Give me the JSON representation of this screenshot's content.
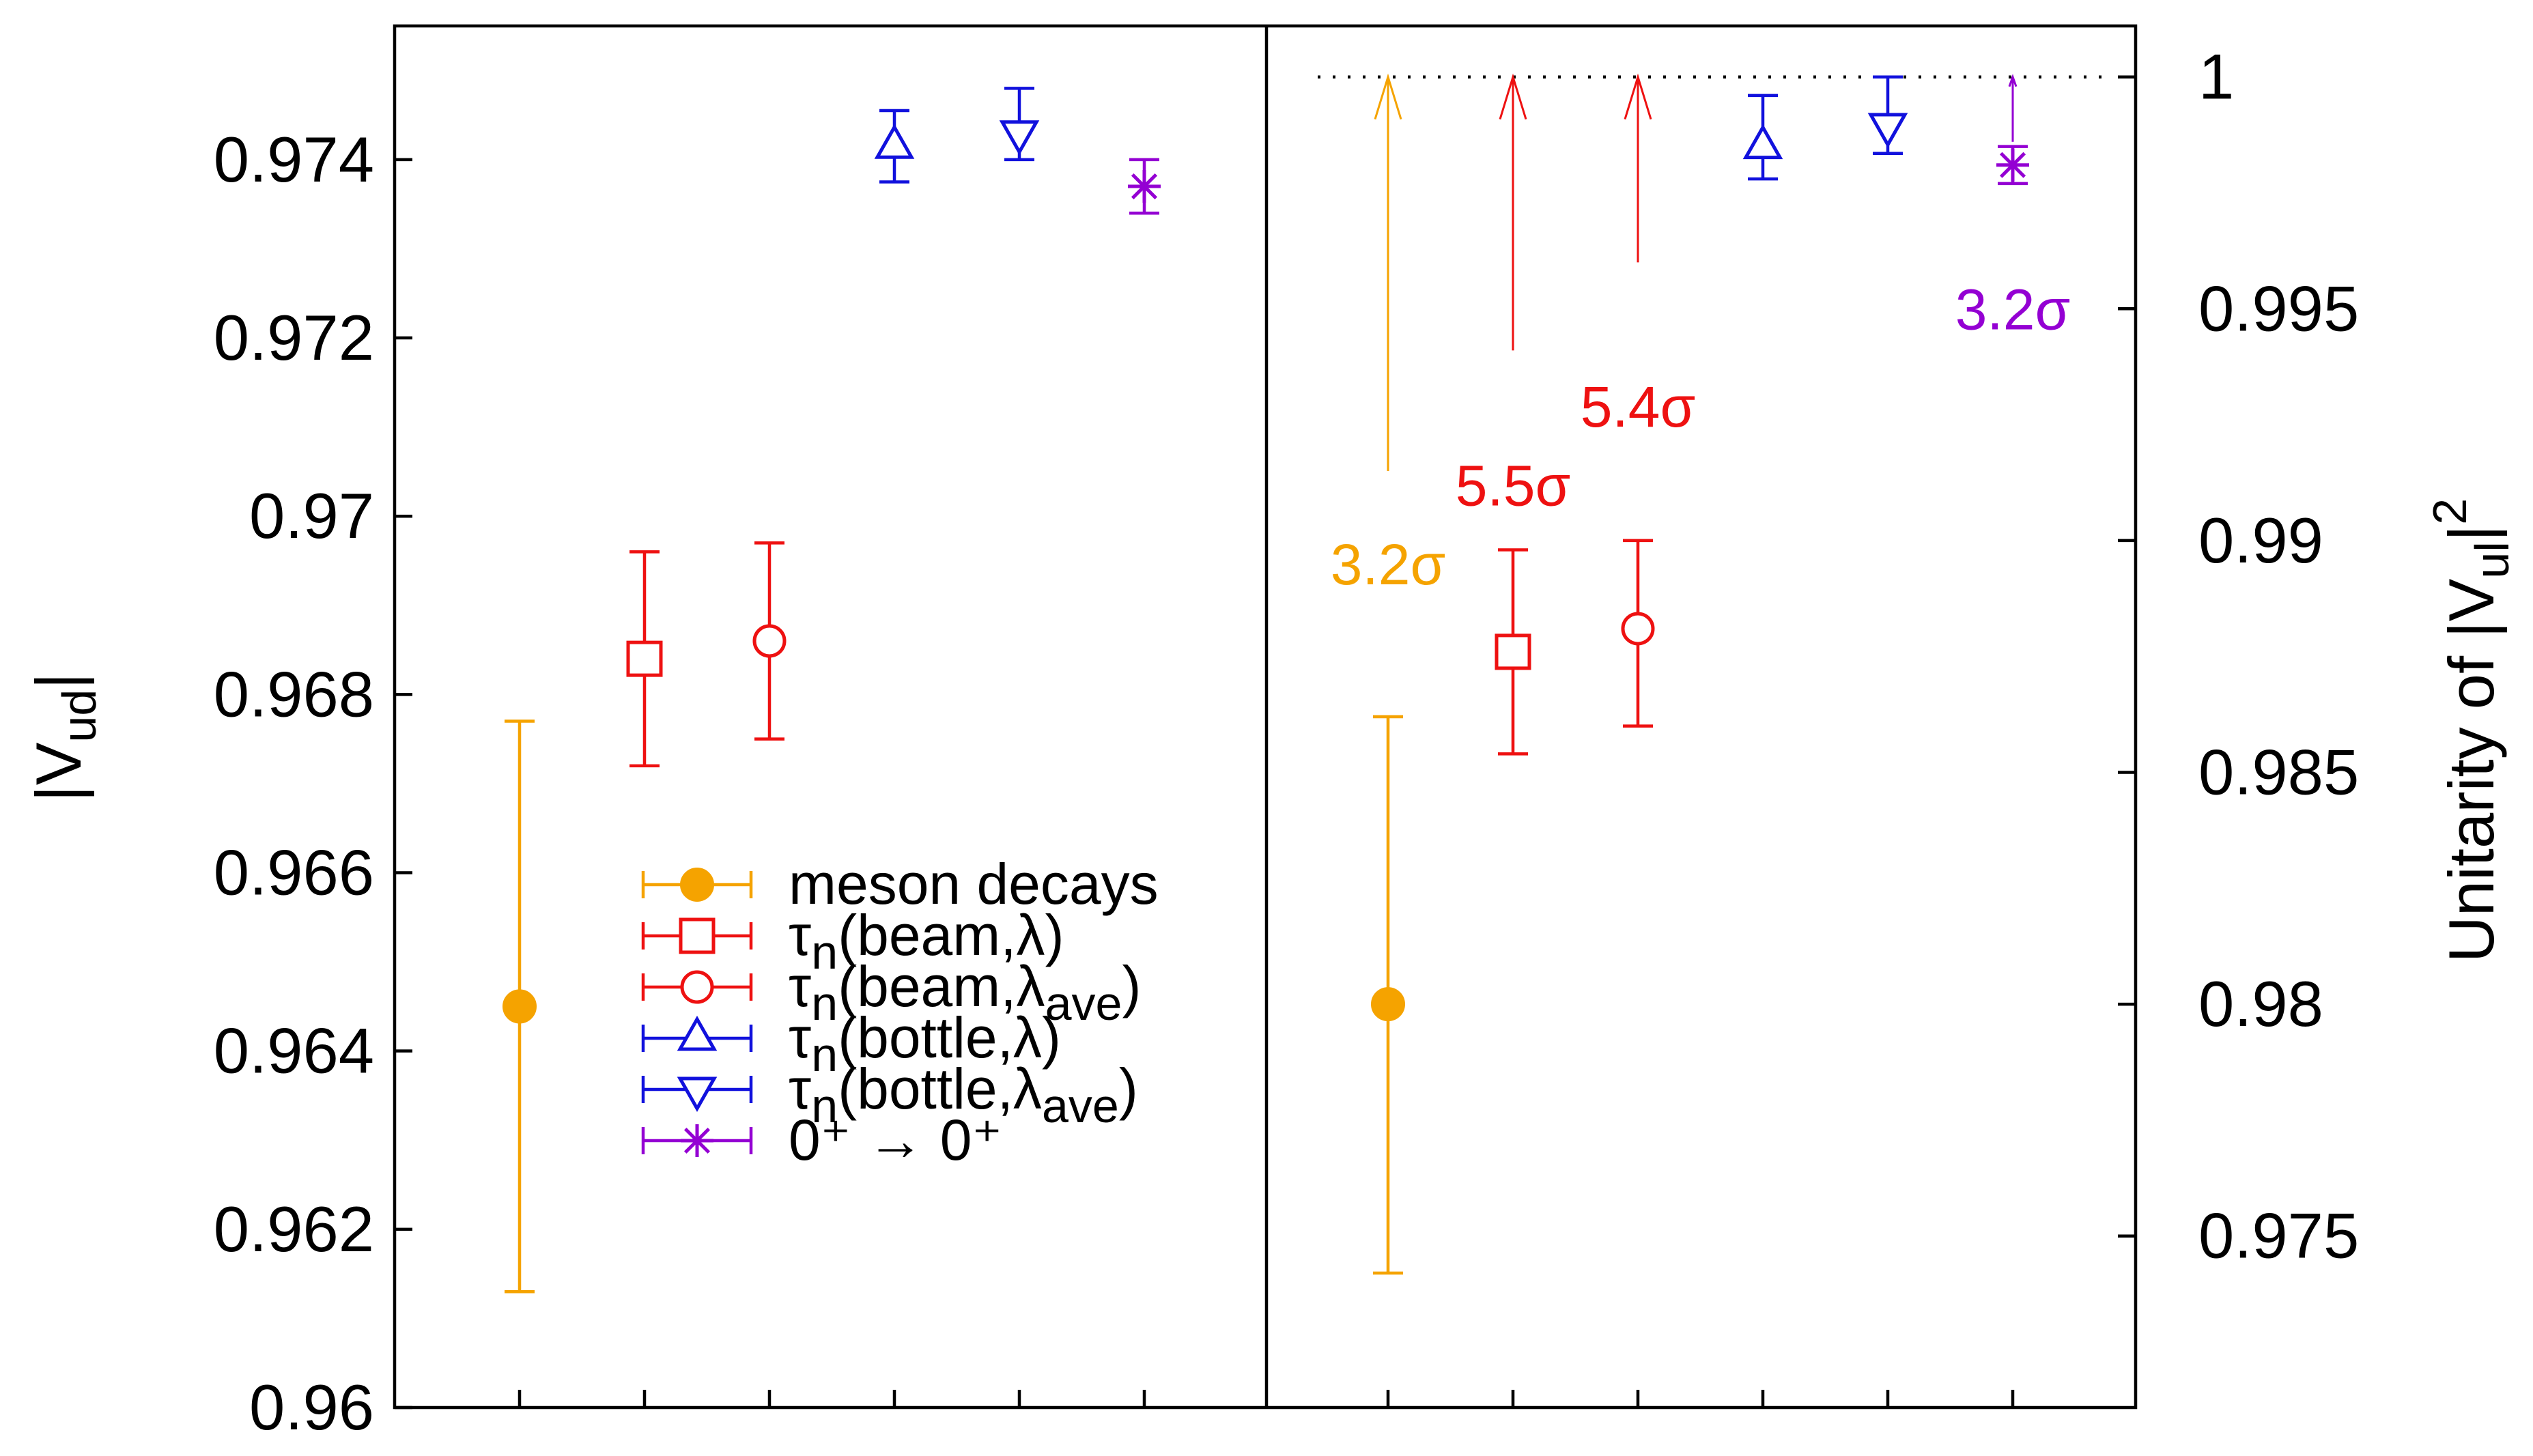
{
  "chart_data": {
    "type": "scatter",
    "colors": {
      "meson": "#f5a300",
      "beam": "#ee1111",
      "bottle": "#1111dd",
      "nuclear": "#9400d3",
      "frame": "#000000"
    },
    "legend": {
      "placement": "bottom-center of left panel",
      "entries": [
        {
          "key": "meson",
          "marker": "filled-circle",
          "color_key": "meson",
          "text": "meson decays",
          "base": "",
          "sub": "",
          "arg": "",
          "argsub": "",
          "close": ""
        },
        {
          "key": "beam_lambda",
          "marker": "open-square",
          "color_key": "beam",
          "text": "",
          "base": "τ",
          "sub": "n",
          "arg": "(beam,λ",
          "argsub": "",
          "close": ")"
        },
        {
          "key": "beam_lambda_ave",
          "marker": "open-circle",
          "color_key": "beam",
          "text": "",
          "base": "τ",
          "sub": "n",
          "arg": "(beam,λ",
          "argsub": "ave",
          "close": ")"
        },
        {
          "key": "bottle_lambda",
          "marker": "open-triangle-up",
          "color_key": "bottle",
          "text": "",
          "base": "τ",
          "sub": "n",
          "arg": "(bottle,λ",
          "argsub": "",
          "close": ")"
        },
        {
          "key": "bottle_lambda_ave",
          "marker": "open-triangle-down",
          "color_key": "bottle",
          "text": "",
          "base": "τ",
          "sub": "n",
          "arg": "(bottle,λ",
          "argsub": "ave",
          "close": ")"
        },
        {
          "key": "superallowed",
          "marker": "asterisk",
          "color_key": "nuclear",
          "text": "0⁺ → 0⁺",
          "base": "",
          "sub": "",
          "arg": "",
          "argsub": "",
          "close": ""
        }
      ]
    },
    "left_panel": {
      "ylabel_main": "|V",
      "ylabel_sub": "ud",
      "ylabel_close": "|",
      "ylim": [
        0.96,
        0.9755
      ],
      "yticks": [
        {
          "value": 0.96,
          "label": "0.96"
        },
        {
          "value": 0.962,
          "label": "0.962"
        },
        {
          "value": 0.964,
          "label": "0.964"
        },
        {
          "value": 0.966,
          "label": "0.966"
        },
        {
          "value": 0.968,
          "label": "0.968"
        },
        {
          "value": 0.97,
          "label": "0.97"
        },
        {
          "value": 0.972,
          "label": "0.972"
        },
        {
          "value": 0.974,
          "label": "0.974"
        }
      ],
      "points": [
        {
          "series": "meson",
          "x": 1,
          "y": 0.9645,
          "ylow": 0.9613,
          "yhigh": 0.9677
        },
        {
          "series": "beam_lambda",
          "x": 2,
          "y": 0.9684,
          "ylow": 0.9672,
          "yhigh": 0.9696
        },
        {
          "series": "beam_lambda_ave",
          "x": 3,
          "y": 0.9686,
          "ylow": 0.9675,
          "yhigh": 0.9697
        },
        {
          "series": "bottle_lambda",
          "x": 4,
          "y": 0.97415,
          "ylow": 0.97375,
          "yhigh": 0.97455
        },
        {
          "series": "bottle_lambda_ave",
          "x": 5,
          "y": 0.9743,
          "ylow": 0.974,
          "yhigh": 0.9748
        },
        {
          "series": "superallowed",
          "x": 6,
          "y": 0.9737,
          "ylow": 0.9734,
          "yhigh": 0.974
        }
      ]
    },
    "right_panel": {
      "ylabel_main": "Unitarity of |V",
      "ylabel_sub": "ul",
      "ylabel_close": "|",
      "ylabel_sup": "2",
      "ylim": [
        0.9713,
        1.0011
      ],
      "yticks": [
        {
          "value": 0.975,
          "label": "0.975"
        },
        {
          "value": 0.98,
          "label": "0.98"
        },
        {
          "value": 0.985,
          "label": "0.985"
        },
        {
          "value": 0.99,
          "label": "0.99"
        },
        {
          "value": 0.995,
          "label": "0.995"
        },
        {
          "value": 1.0,
          "label": "1"
        }
      ],
      "reference_line": {
        "y": 1.0,
        "style": "dotted"
      },
      "points": [
        {
          "series": "meson",
          "x": 1,
          "y": 0.98,
          "ylow": 0.9742,
          "yhigh": 0.9862
        },
        {
          "series": "beam_lambda",
          "x": 2,
          "y": 0.9876,
          "ylow": 0.9854,
          "yhigh": 0.9898
        },
        {
          "series": "beam_lambda_ave",
          "x": 3,
          "y": 0.9881,
          "ylow": 0.986,
          "yhigh": 0.99
        },
        {
          "series": "bottle_lambda",
          "x": 4,
          "y": 0.9985,
          "ylow": 0.9978,
          "yhigh": 0.9996
        },
        {
          "series": "bottle_lambda_ave",
          "x": 5,
          "y": 0.99895,
          "ylow": 0.99835,
          "yhigh": 1.0
        },
        {
          "series": "superallowed",
          "x": 6,
          "y": 0.9981,
          "ylow": 0.9977,
          "yhigh": 0.9985
        }
      ],
      "arrows": [
        {
          "series": "meson",
          "x": 1,
          "from": 0.9915,
          "to": 1.0
        },
        {
          "series": "beam_lambda",
          "x": 2,
          "from": 0.9941,
          "to": 1.0
        },
        {
          "series": "beam_lambda_ave",
          "x": 3,
          "from": 0.996,
          "to": 1.0
        },
        {
          "series": "superallowed",
          "x": 6,
          "from": 0.9986,
          "to": 1.0
        }
      ],
      "annotations": [
        {
          "series": "meson",
          "x": 1,
          "y": 0.9895,
          "text": "3.2σ"
        },
        {
          "series": "beam_lambda",
          "x": 2,
          "y": 0.9912,
          "text": "5.5σ"
        },
        {
          "series": "beam_lambda_ave",
          "x": 3,
          "y": 0.9929,
          "text": "5.4σ"
        },
        {
          "series": "superallowed",
          "x": 6,
          "y": 0.995,
          "text": "3.2σ"
        }
      ]
    }
  }
}
